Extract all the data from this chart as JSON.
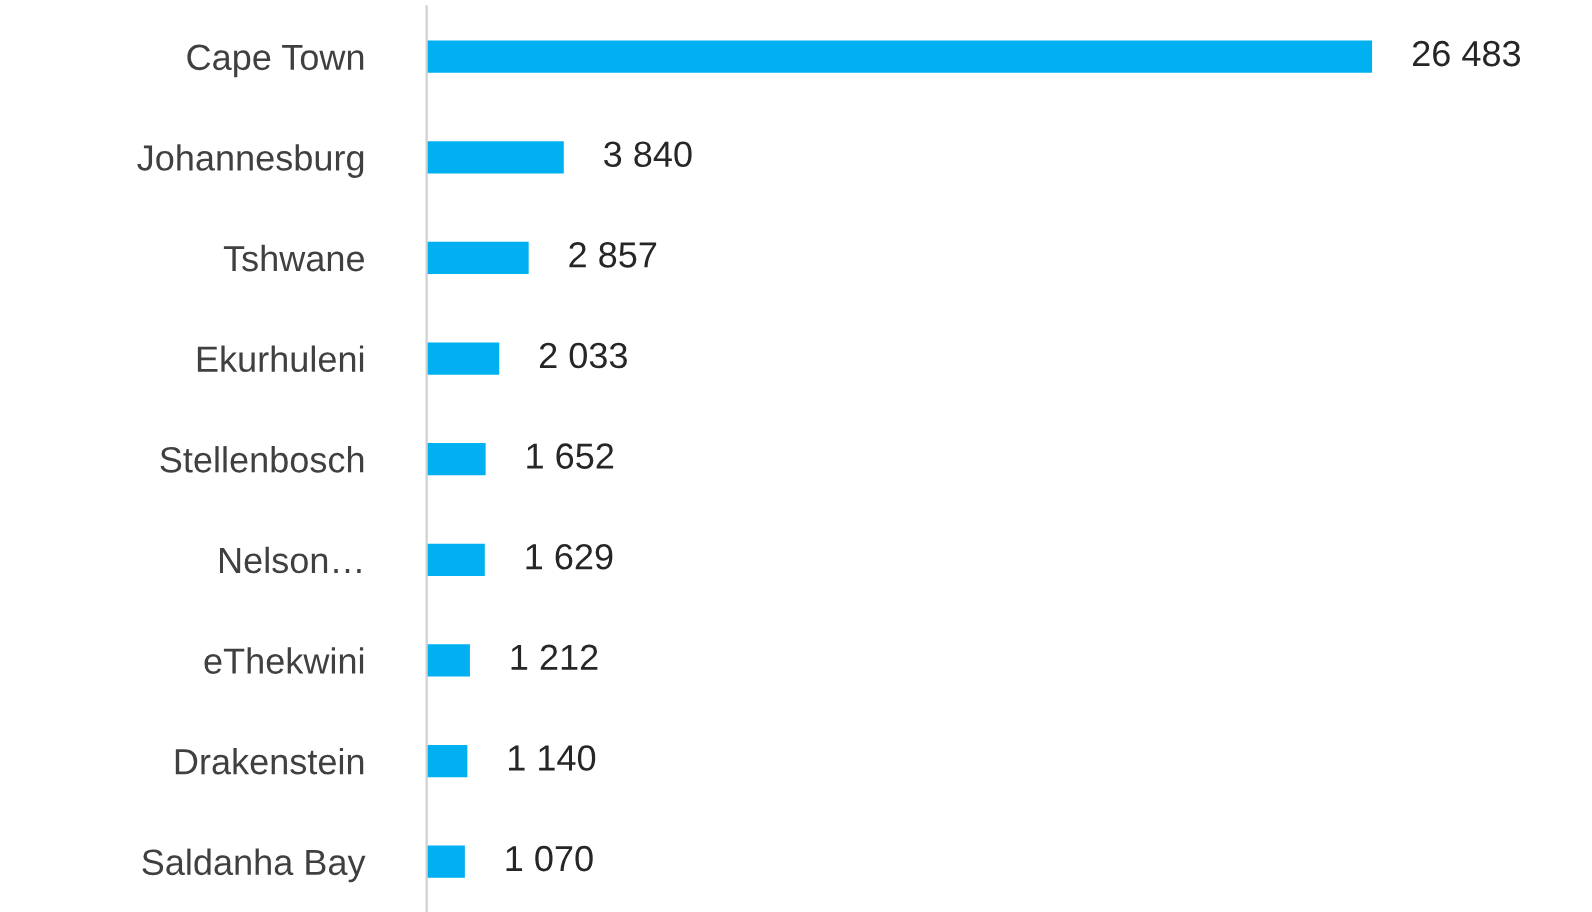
{
  "chart_data": {
    "type": "bar",
    "orientation": "horizontal",
    "categories": [
      "Cape Town",
      "Johannesburg",
      "Tshwane",
      "Ekurhuleni",
      "Stellenbosch",
      "Nelson…",
      "eThekwini",
      "Drakenstein",
      "Saldanha Bay"
    ],
    "values": [
      26483,
      3840,
      2857,
      2033,
      1652,
      1629,
      1212,
      1140,
      1070
    ],
    "value_labels": [
      "26 483",
      "3 840",
      "2 857",
      "2 033",
      "1 652",
      "1 629",
      "1 212",
      "1 140",
      "1 070"
    ],
    "color": "#00b0f0",
    "grid": false,
    "legend": false,
    "tick_labels": "y"
  }
}
